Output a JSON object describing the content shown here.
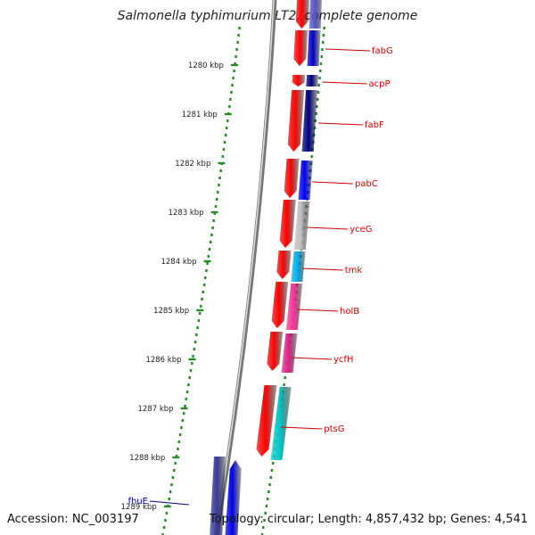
{
  "title": "Salmonella typhimurium LT2, complete genome",
  "footer": {
    "accession": "Accession: NC_003197",
    "summary": "Topology: circular; Length: 4,857,432 bp; Genes: 4,541"
  },
  "ticks": [
    {
      "label": "1280 kbp",
      "kbp": 1280
    },
    {
      "label": "1281 kbp",
      "kbp": 1281
    },
    {
      "label": "1282 kbp",
      "kbp": 1282
    },
    {
      "label": "1283 kbp",
      "kbp": 1283
    },
    {
      "label": "1284 kbp",
      "kbp": 1284
    },
    {
      "label": "1285 kbp",
      "kbp": 1285
    },
    {
      "label": "1286 kbp",
      "kbp": 1286
    },
    {
      "label": "1287 kbp",
      "kbp": 1287
    },
    {
      "label": "1288 kbp",
      "kbp": 1288
    },
    {
      "label": "1289 kbp",
      "kbp": 1289
    }
  ],
  "genes": [
    {
      "name": "fabG",
      "color": "#0000cc"
    },
    {
      "name": "acpP",
      "color": "#000080"
    },
    {
      "name": "fabF",
      "color": "#000080"
    },
    {
      "name": "pabC",
      "color": "#0000ff"
    },
    {
      "name": "yceG",
      "color": "#bfbfbf"
    },
    {
      "name": "tmk",
      "color": "#00b0f0"
    },
    {
      "name": "holB",
      "color": "#ff3399"
    },
    {
      "name": "ycfH",
      "color": "#e0228a"
    },
    {
      "name": "ptsG",
      "color": "#00c8c8"
    },
    {
      "name": "fhuE",
      "color": "#0000ee"
    }
  ],
  "colors": {
    "label": "#cc0000",
    "accent_label": "#000080",
    "dots": "#2a8a2a",
    "cds": "#ff0000",
    "backbone": "#777777"
  }
}
